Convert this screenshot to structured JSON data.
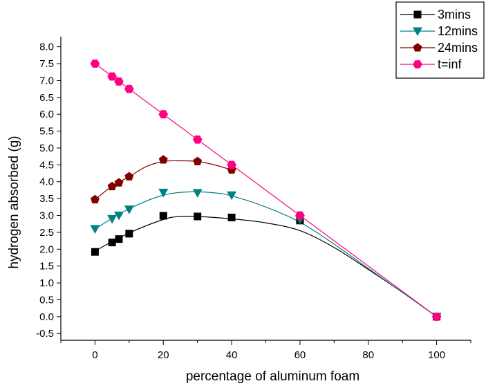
{
  "chart_data": {
    "type": "line",
    "xlabel": "percentage of aluminum foam",
    "ylabel": "hydrogen absorbed (g)",
    "xlim": [
      -10,
      110
    ],
    "ylim": [
      -0.7,
      8.3
    ],
    "x_ticks": [
      0,
      20,
      40,
      60,
      80,
      100
    ],
    "x_tick_labels": [
      "0",
      "20",
      "40",
      "60",
      "80",
      "100"
    ],
    "y_ticks": [
      -0.5,
      0.0,
      0.5,
      1.0,
      1.5,
      2.0,
      2.5,
      3.0,
      3.5,
      4.0,
      4.5,
      5.0,
      5.5,
      6.0,
      6.5,
      7.0,
      7.5,
      8.0
    ],
    "y_tick_labels": [
      "-0.5",
      "0.0",
      "0.5",
      "1.0",
      "1.5",
      "2.0",
      "2.5",
      "3.0",
      "3.5",
      "4.0",
      "4.5",
      "5.0",
      "5.5",
      "6.0",
      "6.5",
      "7.0",
      "7.5",
      "8.0"
    ],
    "grid": false,
    "legend_position": "top-right",
    "series": [
      {
        "name": "3mins",
        "marker": "square",
        "color": "#000000",
        "x": [
          0,
          5,
          7,
          10,
          20,
          30,
          40,
          60,
          100
        ],
        "y": [
          1.92,
          2.2,
          2.3,
          2.46,
          2.99,
          2.97,
          2.94,
          2.85,
          0.0
        ],
        "fit_x": [
          0,
          10,
          20,
          25,
          30,
          40,
          50,
          60,
          70,
          80,
          90,
          100
        ],
        "fit_y": [
          1.95,
          2.48,
          2.88,
          2.97,
          2.97,
          2.9,
          2.78,
          2.55,
          2.05,
          1.4,
          0.72,
          0.0
        ]
      },
      {
        "name": "12mins",
        "marker": "triangle-down",
        "color": "#008080",
        "x": [
          0,
          5,
          7,
          10,
          20,
          30,
          40,
          60,
          100
        ],
        "y": [
          2.6,
          2.9,
          3.0,
          3.18,
          3.68,
          3.67,
          3.6,
          2.88,
          0.0
        ],
        "fit_x": [
          0,
          10,
          20,
          28,
          35,
          40,
          50,
          60,
          70,
          80,
          90,
          100
        ],
        "fit_y": [
          2.6,
          3.2,
          3.6,
          3.7,
          3.67,
          3.58,
          3.25,
          2.8,
          2.15,
          1.43,
          0.72,
          0.0
        ]
      },
      {
        "name": "24mins",
        "marker": "pentagon",
        "color": "#800000",
        "x": [
          0,
          5,
          7,
          10,
          20,
          30,
          40
        ],
        "y": [
          3.47,
          3.86,
          3.97,
          4.15,
          4.65,
          4.6,
          4.35
        ],
        "fit_x": [
          0,
          5,
          10,
          15,
          20,
          25,
          30,
          35,
          40
        ],
        "fit_y": [
          3.47,
          3.87,
          4.15,
          4.45,
          4.6,
          4.62,
          4.6,
          4.5,
          4.35
        ]
      },
      {
        "name": "t=inf",
        "marker": "hexagon",
        "color": "#ff0080",
        "x": [
          0,
          5,
          7,
          10,
          20,
          30,
          40,
          60,
          100
        ],
        "y": [
          7.5,
          7.12,
          6.97,
          6.75,
          6.0,
          5.25,
          4.5,
          3.0,
          0.0
        ],
        "fit_x": [
          0,
          100
        ],
        "fit_y": [
          7.5,
          0.0
        ]
      }
    ]
  }
}
